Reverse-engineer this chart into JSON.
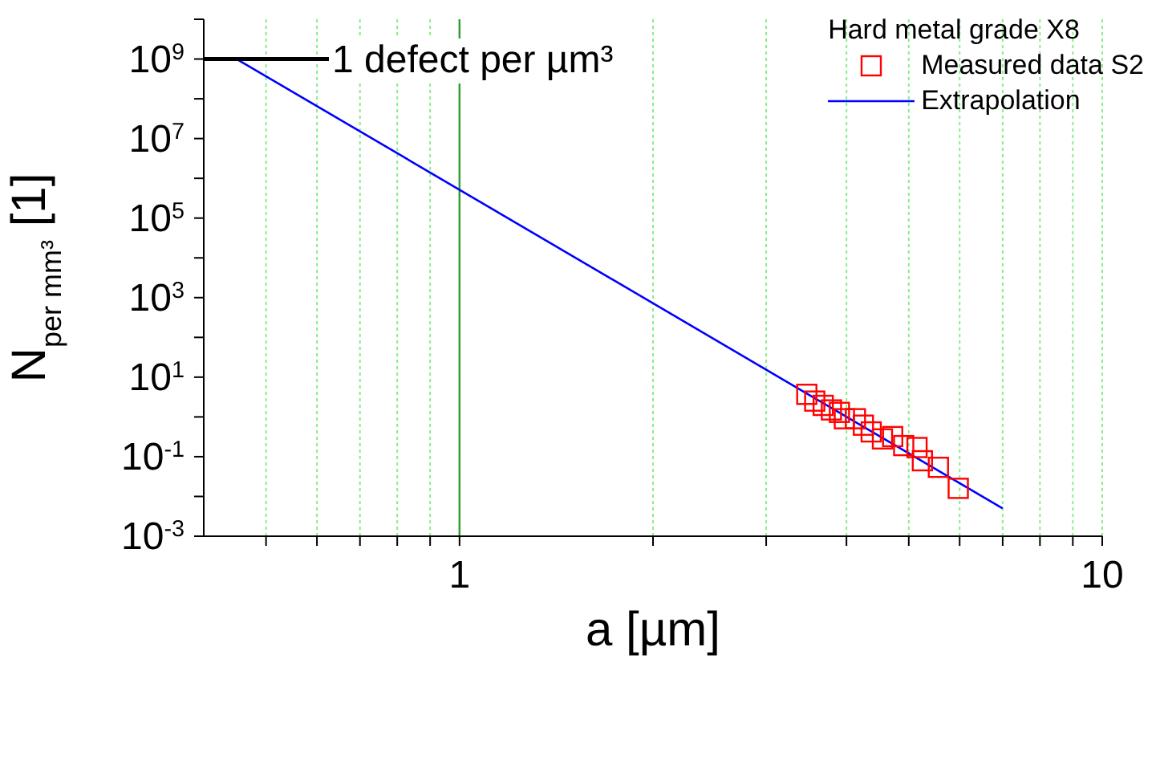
{
  "chart_data": {
    "type": "scatter",
    "xlabel": "a [µm]",
    "ylabel": "N$_{per mm³}$ [1]",
    "legend_title": "Hard metal grade X8",
    "legend": "top right",
    "log": "xy",
    "grid": "x",
    "xlim": [
      0.4,
      10
    ],
    "xticks": [
      {
        "value": 0.5,
        "label": null
      },
      {
        "value": 0.6,
        "label": null
      },
      {
        "value": 0.7,
        "label": null
      },
      {
        "value": 0.8,
        "label": null
      },
      {
        "value": 0.9,
        "label": null
      },
      1,
      {
        "value": 2,
        "label": null
      },
      {
        "value": 3,
        "label": null
      },
      {
        "value": 4,
        "label": null
      },
      {
        "value": 5,
        "label": null
      },
      {
        "value": 6,
        "label": null
      },
      {
        "value": 7,
        "label": null
      },
      {
        "value": 8,
        "label": null
      },
      {
        "value": 9,
        "label": null
      },
      10
    ],
    "ylim": [
      0.001,
      10000000000
    ],
    "yticks": [
      {
        "value": 0.001,
        "label": "10$^{-3}$"
      },
      {
        "value": 0.01,
        "label": null
      },
      {
        "value": 0.1,
        "label": "10$^{-1}$"
      },
      {
        "value": 1,
        "label": null
      },
      {
        "value": 10,
        "label": "10$^{1}$"
      },
      {
        "value": 100,
        "label": null
      },
      {
        "value": 1000,
        "label": "10$^{3}$"
      },
      {
        "value": 10000,
        "label": null
      },
      {
        "value": 100000,
        "label": "10$^{5}$"
      },
      {
        "value": 1000000,
        "label": null
      },
      {
        "value": 10000000,
        "label": "10$^{7}$"
      },
      {
        "value": 100000000,
        "label": null
      },
      {
        "value": 1000000000,
        "label": "10$^{9}$"
      },
      {
        "value": 10000000000,
        "label": null
      }
    ],
    "ref_lines": [
      {
        "axis": "x",
        "value": 1,
        "color": "#339933"
      }
    ],
    "annotations": [
      "1 defect per µm³"
    ],
    "series": [
      {
        "name": "Measured data S2",
        "marker": "square",
        "color": "#ff0000",
        "x": [
          3.47,
          3.57,
          3.68,
          3.79,
          3.9,
          3.97,
          4.13,
          4.25,
          4.37,
          4.55,
          4.72,
          4.91,
          5.15,
          5.25,
          5.56,
          5.97
        ],
        "values": [
          3.7,
          2.5,
          1.95,
          1.5,
          1.3,
          0.9,
          0.9,
          0.62,
          0.42,
          0.28,
          0.32,
          0.19,
          0.17,
          0.079,
          0.054,
          0.016
        ]
      },
      {
        "name": "Extrapolation",
        "type": "line",
        "color": "#0000ff",
        "x": [
          0.45,
          7
        ],
        "values": [
          1000000000,
          0.005
        ]
      },
      {
        "type": "line",
        "color": "#000000",
        "x": [
          0.4,
          0.63
        ],
        "values": [
          1000000000,
          1000000000
        ]
      }
    ]
  }
}
